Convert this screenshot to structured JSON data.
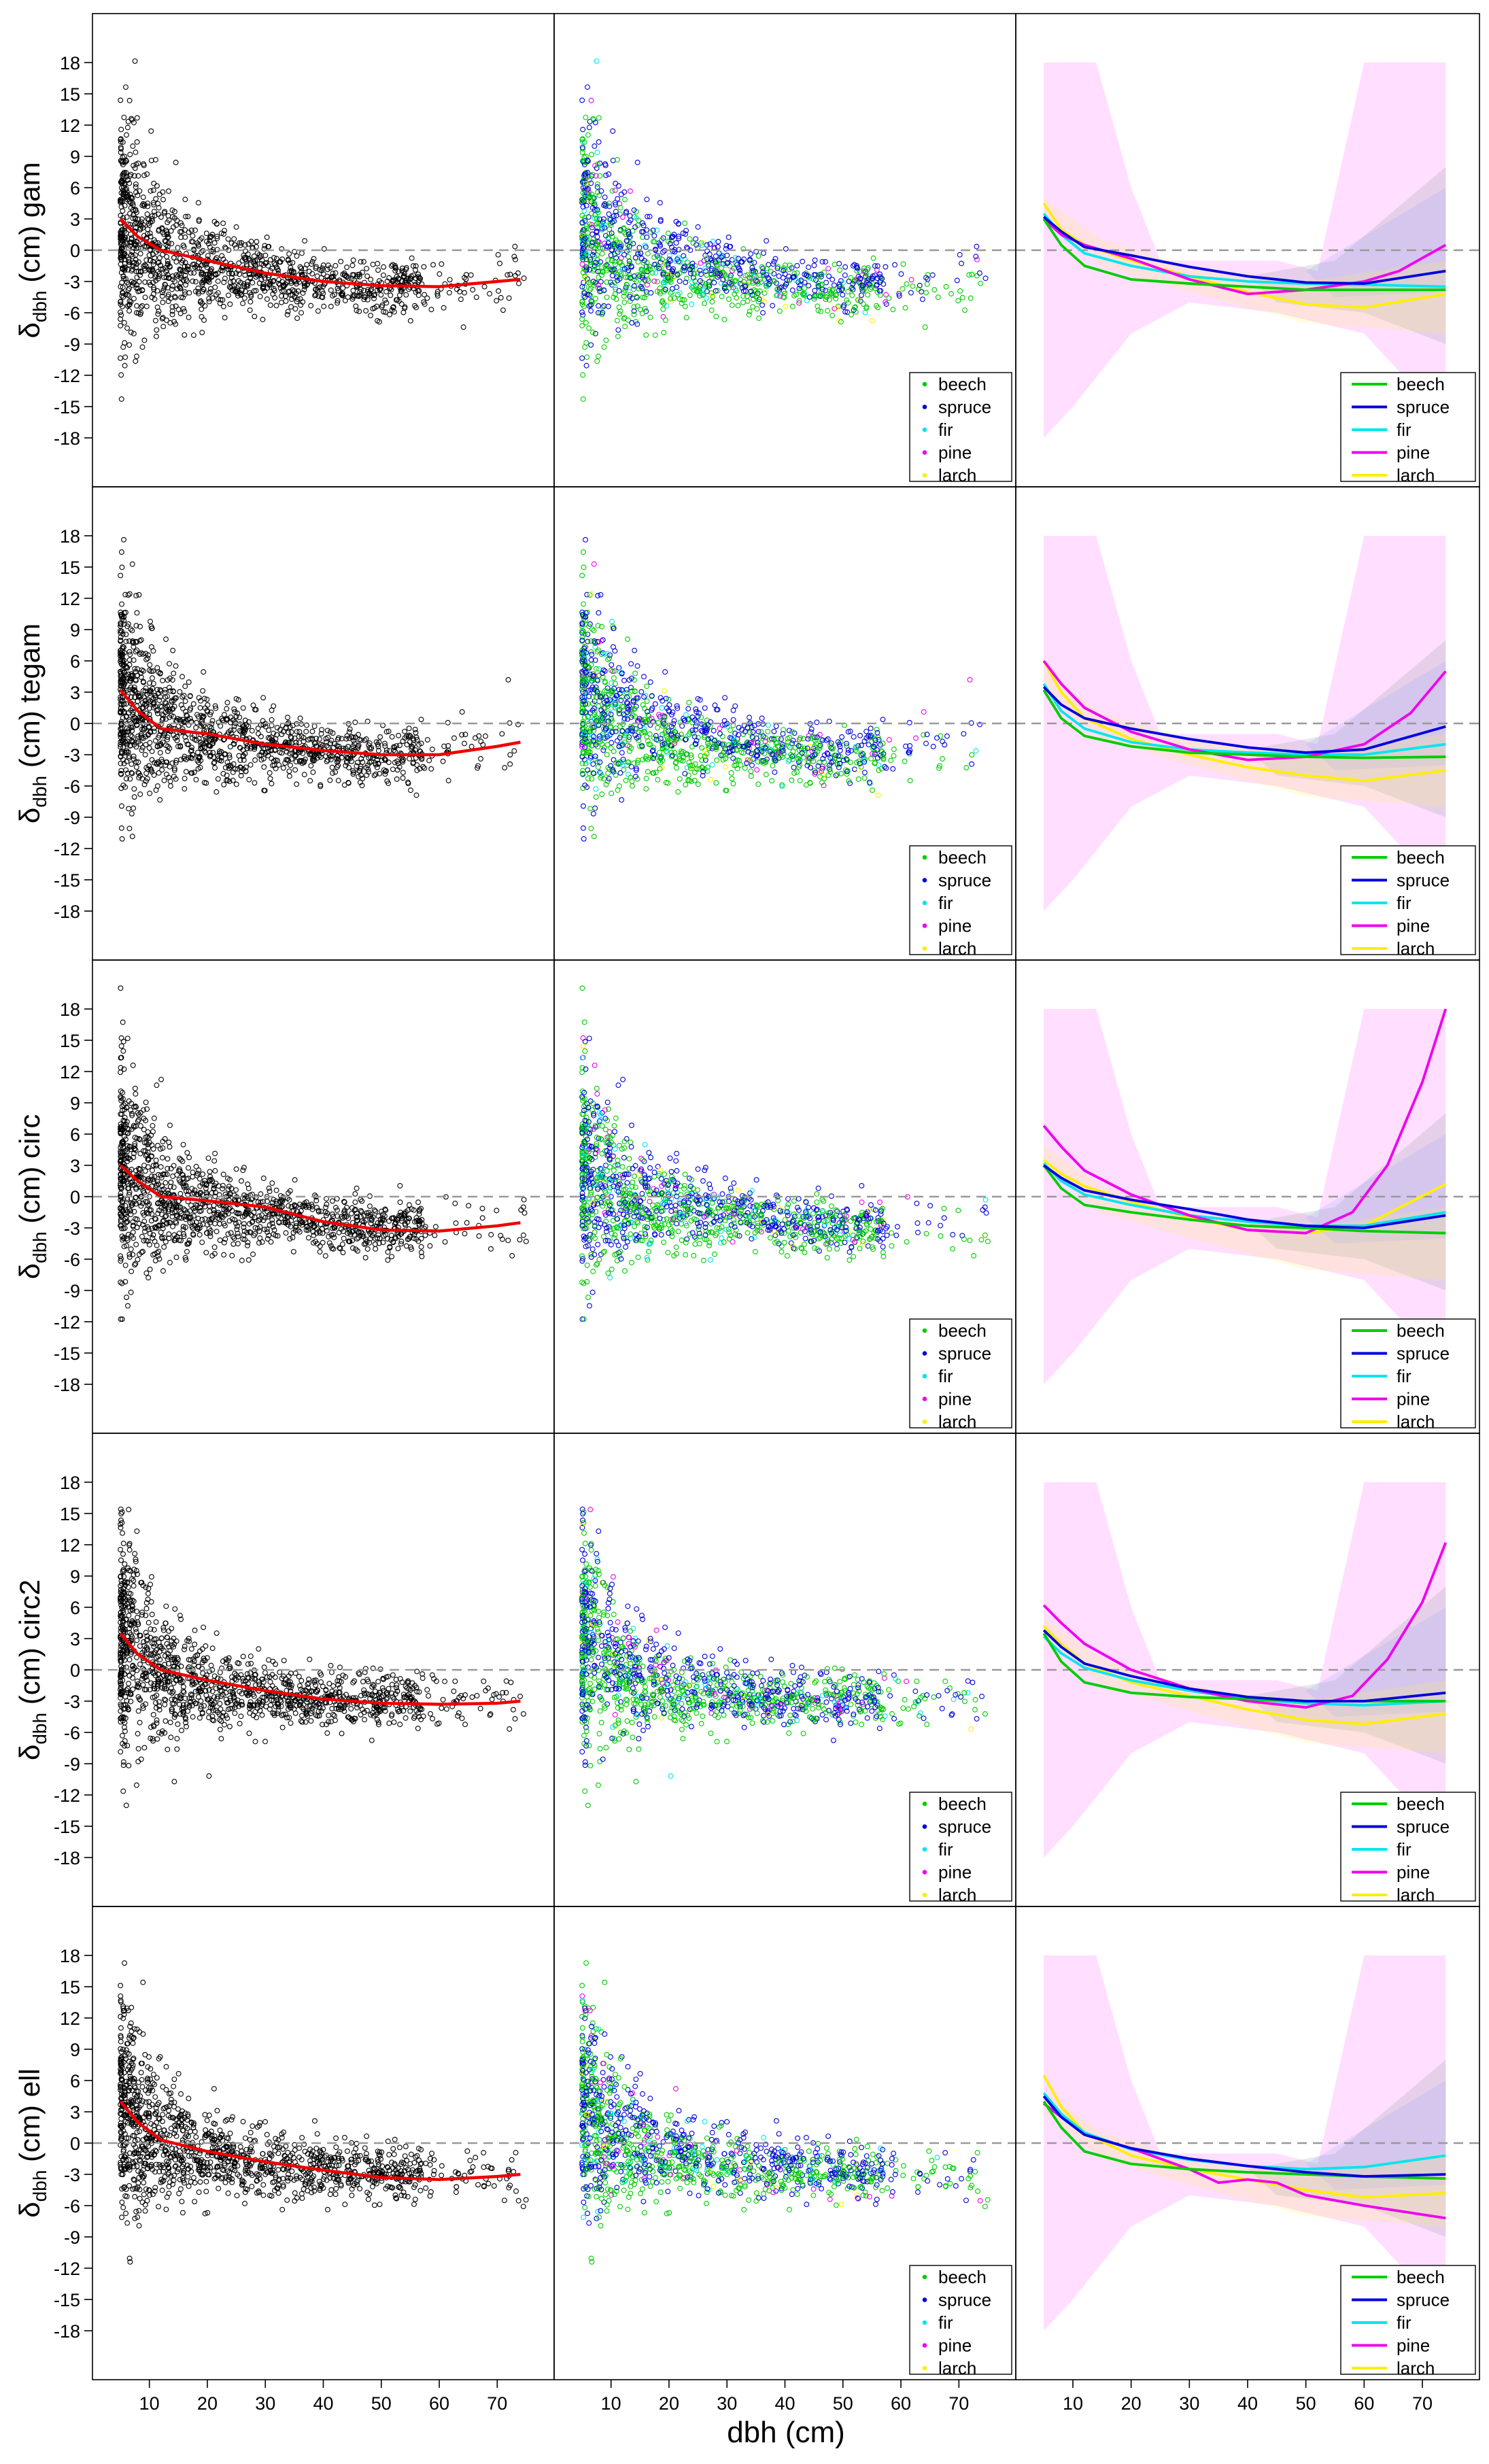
{
  "chart_data": {
    "type": "scatter",
    "xlabel": "dbh (cm)",
    "ylabel_template": "δdbh (cm)",
    "x_ticks": [
      10,
      20,
      30,
      40,
      50,
      60,
      70
    ],
    "xlim": [
      3,
      77
    ],
    "species": [
      "beech",
      "spruce",
      "fir",
      "pine",
      "larch"
    ],
    "colors": {
      "beech": "#00cc00",
      "spruce": "#0000dd",
      "fir": "#00e5ee",
      "pine": "#ee00ee",
      "larch": "#ffee00",
      "all": "#000000",
      "overall_fit": "#ee0000",
      "reference_line": "#999999"
    },
    "rows": [
      {
        "method": "gam",
        "ylim": [
          -21,
          21
        ],
        "y_ticks": [
          18,
          15,
          12,
          9,
          6,
          3,
          0,
          -3,
          -6,
          -9,
          -12,
          -15,
          -18
        ],
        "overall_fit": {
          "x": [
            5,
            8,
            12,
            20,
            30,
            40,
            50,
            60,
            70,
            74
          ],
          "y": [
            3.0,
            1.3,
            0.0,
            -1.0,
            -2.2,
            -3.0,
            -3.4,
            -3.5,
            -3.0,
            -2.8
          ]
        },
        "species_fits": {
          "beech": {
            "x": [
              5,
              8,
              12,
              20,
              30,
              40,
              50,
              60,
              74
            ],
            "y": [
              3.0,
              0.5,
              -1.5,
              -2.8,
              -3.2,
              -3.5,
              -3.8,
              -3.8,
              -3.8
            ]
          },
          "spruce": {
            "x": [
              5,
              8,
              12,
              20,
              30,
              40,
              50,
              60,
              74
            ],
            "y": [
              3.2,
              1.8,
              0.3,
              -0.5,
              -1.6,
              -2.5,
              -3.1,
              -3.2,
              -2.0
            ]
          },
          "fir": {
            "x": [
              5,
              8,
              12,
              20,
              30,
              40,
              50,
              60,
              74
            ],
            "y": [
              3.5,
              1.5,
              -0.3,
              -1.5,
              -2.5,
              -3.0,
              -3.2,
              -3.3,
              -3.5
            ]
          },
          "pine": {
            "x": [
              5,
              8,
              12,
              20,
              30,
              40,
              50,
              60,
              66,
              74
            ],
            "y": [
              3.0,
              1.5,
              0.5,
              -0.8,
              -2.8,
              -4.2,
              -3.8,
              -3.0,
              -2.0,
              0.5
            ]
          },
          "larch": {
            "x": [
              5,
              8,
              12,
              20,
              30,
              40,
              50,
              60,
              74
            ],
            "y": [
              4.5,
              2.0,
              0.5,
              -1.0,
              -2.5,
              -4.0,
              -5.2,
              -5.5,
              -4.2
            ]
          }
        }
      },
      {
        "method": "tegam",
        "ylim": [
          -21,
          21
        ],
        "y_ticks": [
          18,
          15,
          12,
          9,
          6,
          3,
          0,
          -3,
          -6,
          -9,
          -12,
          -15,
          -18
        ],
        "overall_fit": {
          "x": [
            5,
            8,
            12,
            20,
            30,
            40,
            50,
            60,
            70,
            74
          ],
          "y": [
            3.2,
            1.2,
            -0.5,
            -1.0,
            -2.0,
            -2.6,
            -3.0,
            -3.0,
            -2.2,
            -1.8
          ]
        },
        "species_fits": {
          "beech": {
            "x": [
              5,
              8,
              12,
              20,
              30,
              40,
              50,
              60,
              74
            ],
            "y": [
              3.2,
              0.5,
              -1.2,
              -2.2,
              -2.8,
              -3.0,
              -3.2,
              -3.3,
              -3.2
            ]
          },
          "spruce": {
            "x": [
              5,
              8,
              12,
              20,
              30,
              40,
              50,
              60,
              74
            ],
            "y": [
              3.5,
              1.8,
              0.5,
              -0.5,
              -1.5,
              -2.3,
              -2.8,
              -2.5,
              -0.3
            ]
          },
          "fir": {
            "x": [
              5,
              8,
              12,
              20,
              30,
              40,
              50,
              60,
              74
            ],
            "y": [
              3.8,
              1.2,
              -0.5,
              -1.8,
              -2.5,
              -2.8,
              -3.0,
              -3.0,
              -2.0
            ]
          },
          "pine": {
            "x": [
              5,
              8,
              12,
              20,
              30,
              40,
              50,
              60,
              68,
              74
            ],
            "y": [
              6.0,
              3.8,
              1.5,
              -0.8,
              -2.5,
              -3.5,
              -3.2,
              -2.0,
              1.0,
              5.0
            ]
          },
          "larch": {
            "x": [
              5,
              8,
              12,
              20,
              30,
              40,
              50,
              60,
              74
            ],
            "y": [
              6.0,
              3.0,
              0.5,
              -1.5,
              -3.0,
              -4.2,
              -5.0,
              -5.5,
              -4.5
            ]
          }
        }
      },
      {
        "method": "circ",
        "ylim": [
          -21,
          21
        ],
        "y_ticks": [
          18,
          15,
          12,
          9,
          6,
          3,
          0,
          -3,
          -6,
          -9,
          -12,
          -15,
          -18
        ],
        "overall_fit": {
          "x": [
            5,
            8,
            12,
            20,
            30,
            40,
            50,
            60,
            70,
            74
          ],
          "y": [
            3.0,
            1.5,
            0.0,
            -0.4,
            -1.0,
            -2.4,
            -3.2,
            -3.3,
            -2.8,
            -2.5
          ]
        },
        "species_fits": {
          "beech": {
            "x": [
              5,
              8,
              12,
              20,
              30,
              40,
              50,
              60,
              74
            ],
            "y": [
              3.0,
              0.8,
              -0.8,
              -1.5,
              -2.2,
              -2.8,
              -3.0,
              -3.3,
              -3.5
            ]
          },
          "spruce": {
            "x": [
              5,
              8,
              12,
              20,
              30,
              40,
              50,
              60,
              74
            ],
            "y": [
              3.0,
              1.8,
              0.6,
              -0.3,
              -1.2,
              -2.2,
              -2.8,
              -3.0,
              -1.8
            ]
          },
          "fir": {
            "x": [
              5,
              8,
              12,
              20,
              30,
              40,
              50,
              60,
              74
            ],
            "y": [
              3.2,
              1.5,
              0.2,
              -0.8,
              -1.8,
              -2.4,
              -2.8,
              -2.8,
              -1.5
            ]
          },
          "pine": {
            "x": [
              5,
              8,
              12,
              20,
              30,
              40,
              50,
              58,
              64,
              70,
              74
            ],
            "y": [
              6.8,
              4.8,
              2.5,
              0.2,
              -1.8,
              -3.2,
              -3.5,
              -1.5,
              3.0,
              11.0,
              18.0
            ]
          },
          "larch": {
            "x": [
              5,
              8,
              12,
              20,
              30,
              40,
              50,
              60,
              74
            ],
            "y": [
              3.5,
              2.2,
              1.0,
              -0.5,
              -2.0,
              -3.2,
              -3.5,
              -2.8,
              1.2
            ]
          }
        }
      },
      {
        "method": "circ2",
        "ylim": [
          -21,
          21
        ],
        "y_ticks": [
          18,
          15,
          12,
          9,
          6,
          3,
          0,
          -3,
          -6,
          -9,
          -12,
          -15,
          -18
        ],
        "overall_fit": {
          "x": [
            5,
            8,
            12,
            20,
            30,
            40,
            50,
            60,
            70,
            74
          ],
          "y": [
            3.5,
            1.5,
            0.0,
            -1.0,
            -2.0,
            -2.8,
            -3.2,
            -3.3,
            -3.2,
            -3.0
          ]
        },
        "species_fits": {
          "beech": {
            "x": [
              5,
              8,
              12,
              20,
              30,
              40,
              50,
              60,
              74
            ],
            "y": [
              3.5,
              0.8,
              -1.2,
              -2.2,
              -2.6,
              -2.8,
              -3.0,
              -3.0,
              -3.0
            ]
          },
          "spruce": {
            "x": [
              5,
              8,
              12,
              20,
              30,
              40,
              50,
              60,
              74
            ],
            "y": [
              3.8,
              2.2,
              0.6,
              -0.6,
              -1.8,
              -2.6,
              -3.0,
              -3.0,
              -2.2
            ]
          },
          "fir": {
            "x": [
              5,
              8,
              12,
              20,
              30,
              40,
              50,
              60,
              74
            ],
            "y": [
              3.2,
              1.6,
              0.2,
              -1.0,
              -2.0,
              -2.8,
              -3.2,
              -3.4,
              -3.0
            ]
          },
          "pine": {
            "x": [
              5,
              8,
              12,
              20,
              30,
              40,
              50,
              58,
              64,
              70,
              74
            ],
            "y": [
              6.2,
              4.5,
              2.5,
              0.0,
              -1.8,
              -3.0,
              -3.6,
              -2.5,
              1.0,
              6.5,
              12.2
            ]
          },
          "larch": {
            "x": [
              5,
              8,
              12,
              20,
              30,
              40,
              50,
              60,
              74
            ],
            "y": [
              4.2,
              2.5,
              0.6,
              -1.2,
              -2.5,
              -3.8,
              -4.8,
              -5.2,
              -4.2
            ]
          }
        }
      },
      {
        "method": "ell",
        "ylim": [
          -21,
          21
        ],
        "y_ticks": [
          18,
          15,
          12,
          9,
          6,
          3,
          0,
          -3,
          -6,
          -9,
          -12,
          -15,
          -18
        ],
        "overall_fit": {
          "x": [
            5,
            8,
            12,
            20,
            30,
            40,
            50,
            60,
            70,
            74
          ],
          "y": [
            4.0,
            2.0,
            0.3,
            -0.8,
            -1.8,
            -2.6,
            -3.3,
            -3.5,
            -3.2,
            -3.0
          ]
        },
        "species_fits": {
          "beech": {
            "x": [
              5,
              8,
              12,
              20,
              30,
              40,
              50,
              60,
              74
            ],
            "y": [
              4.0,
              1.5,
              -0.8,
              -2.0,
              -2.5,
              -2.8,
              -3.0,
              -3.2,
              -3.4
            ]
          },
          "spruce": {
            "x": [
              5,
              8,
              12,
              20,
              30,
              40,
              50,
              60,
              74
            ],
            "y": [
              4.5,
              2.5,
              0.8,
              -0.5,
              -1.5,
              -2.2,
              -2.8,
              -3.2,
              -3.0
            ]
          },
          "fir": {
            "x": [
              5,
              8,
              12,
              20,
              30,
              40,
              50,
              60,
              74
            ],
            "y": [
              4.8,
              2.8,
              1.0,
              -0.6,
              -1.6,
              -2.2,
              -2.5,
              -2.3,
              -1.2
            ]
          },
          "pine": {
            "x": [
              5,
              8,
              12,
              20,
              30,
              35,
              40,
              45,
              50,
              60,
              74
            ],
            "y": [
              3.8,
              2.5,
              0.8,
              -0.5,
              -2.5,
              -3.8,
              -3.5,
              -3.8,
              -5.0,
              -6.0,
              -7.2
            ]
          },
          "larch": {
            "x": [
              5,
              8,
              12,
              20,
              30,
              40,
              50,
              60,
              74
            ],
            "y": [
              6.5,
              3.5,
              1.0,
              -1.2,
              -2.5,
              -3.5,
              -4.5,
              -5.2,
              -4.8
            ]
          }
        }
      }
    ]
  },
  "legend_entries": [
    "beech",
    "spruce",
    "fir",
    "pine",
    "larch"
  ]
}
